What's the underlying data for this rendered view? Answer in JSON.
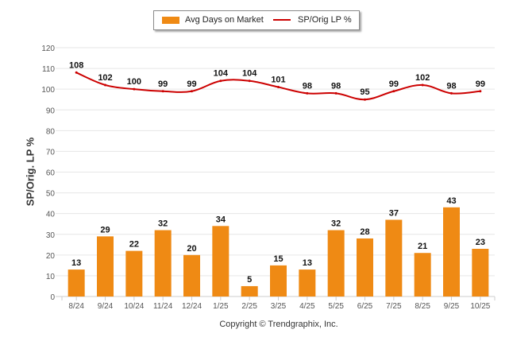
{
  "chart_data": {
    "type": "bar",
    "title": "",
    "xlabel": "",
    "ylabel": "SP/Orig. LP %",
    "ylim": [
      0,
      120
    ],
    "yticks": [
      0,
      10,
      20,
      30,
      40,
      50,
      60,
      70,
      80,
      90,
      100,
      110,
      120
    ],
    "grid": true,
    "legend_position": "top-center",
    "categories": [
      "8/24",
      "9/24",
      "10/24",
      "11/24",
      "12/24",
      "1/25",
      "2/25",
      "3/25",
      "4/25",
      "5/25",
      "6/25",
      "7/25",
      "8/25",
      "9/25",
      "10/25"
    ],
    "series": [
      {
        "name": "Avg Days on Market",
        "type": "bar",
        "color": "#ef8a14",
        "values": [
          13,
          29,
          22,
          32,
          20,
          34,
          5,
          15,
          13,
          32,
          28,
          37,
          21,
          43,
          23
        ]
      },
      {
        "name": "SP/Orig LP %",
        "type": "line",
        "color": "#cc0000",
        "values": [
          108,
          102,
          100,
          99,
          99,
          104,
          104,
          101,
          98,
          98,
          95,
          99,
          102,
          98,
          99
        ]
      }
    ]
  },
  "footer": {
    "copyright": "Copyright © Trendgraphix, Inc."
  }
}
